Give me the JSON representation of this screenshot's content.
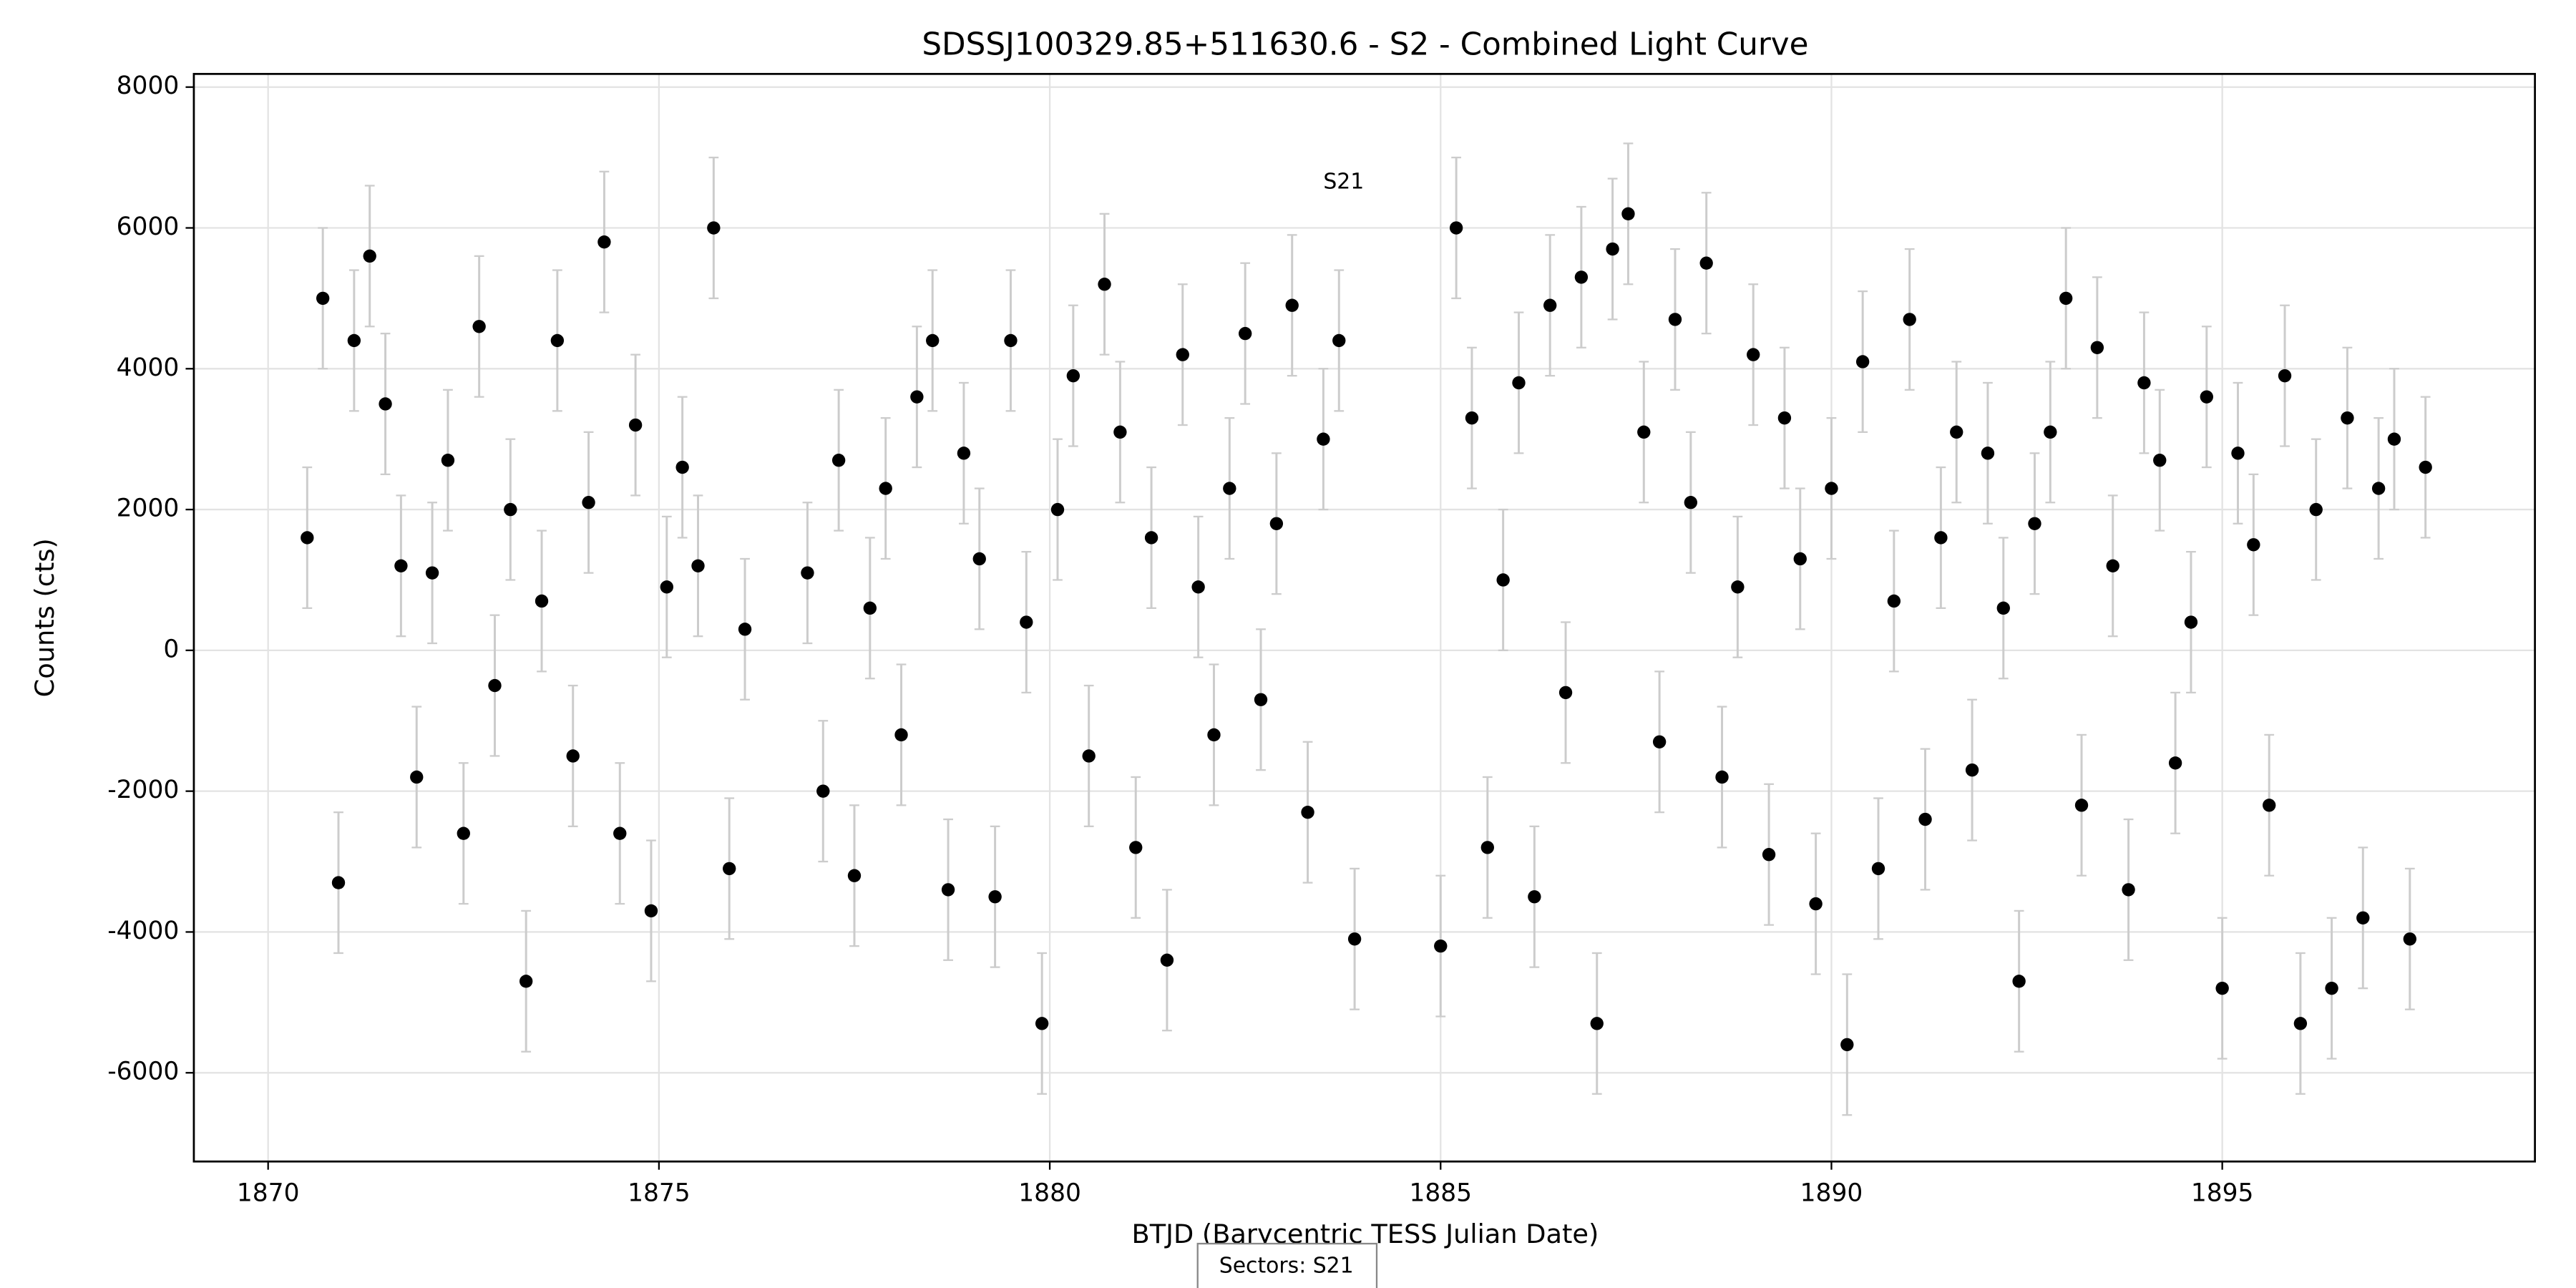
{
  "chart_data": {
    "type": "scatter",
    "title": "SDSSJ100329.85+511630.6 - S2 - Combined Light Curve",
    "xlabel": "BTJD (Barycentric TESS Julian Date)",
    "ylabel": "Counts (cts)",
    "annotation": {
      "text": "S21",
      "x": 1883.76,
      "y": 6647
    },
    "legend_title": "Sectors: S21",
    "legend_position": "lower center",
    "grid": true,
    "color": "#000000",
    "error_color": "#cccccc",
    "yerr": 1000,
    "xlim": [
      1869.05,
      1899.0
    ],
    "ylim": [
      -7260,
      8187
    ],
    "xticks": [
      1870,
      1875,
      1880,
      1885,
      1890,
      1895
    ],
    "yticks": [
      -6000,
      -4000,
      -2000,
      0,
      2000,
      4000,
      6000,
      8000
    ],
    "x": [
      1870.5,
      1870.7,
      1870.9,
      1871.1,
      1871.3,
      1871.5,
      1871.7,
      1871.9,
      1872.1,
      1872.3,
      1872.5,
      1872.7,
      1872.9,
      1873.1,
      1873.3,
      1873.5,
      1873.7,
      1873.9,
      1874.1,
      1874.3,
      1874.5,
      1874.7,
      1874.9,
      1875.1,
      1875.3,
      1875.5,
      1875.7,
      1875.9,
      1876.1,
      1876.9,
      1877.1,
      1877.3,
      1877.5,
      1877.7,
      1877.9,
      1878.1,
      1878.3,
      1878.5,
      1878.7,
      1878.9,
      1879.1,
      1879.3,
      1879.5,
      1879.7,
      1879.9,
      1880.1,
      1880.3,
      1880.5,
      1880.7,
      1880.9,
      1881.1,
      1881.3,
      1881.5,
      1881.7,
      1881.9,
      1882.1,
      1882.3,
      1882.5,
      1882.7,
      1882.9,
      1883.1,
      1883.3,
      1883.5,
      1883.7,
      1883.9,
      1885.0,
      1885.2,
      1885.4,
      1885.6,
      1885.8,
      1886.0,
      1886.2,
      1886.4,
      1886.6,
      1886.8,
      1887.0,
      1887.2,
      1887.4,
      1887.6,
      1887.8,
      1888.0,
      1888.2,
      1888.4,
      1888.6,
      1888.8,
      1889.0,
      1889.2,
      1889.4,
      1889.6,
      1889.8,
      1890.0,
      1890.2,
      1890.4,
      1890.6,
      1890.8,
      1891.0,
      1891.2,
      1891.4,
      1891.6,
      1891.8,
      1892.0,
      1892.2,
      1892.4,
      1892.6,
      1892.8,
      1893.0,
      1893.2,
      1893.4,
      1893.6,
      1893.8,
      1894.0,
      1894.2,
      1894.4,
      1894.6,
      1894.8,
      1895.0,
      1895.2,
      1895.4,
      1895.6,
      1895.8,
      1896.0,
      1896.2,
      1896.4,
      1896.6,
      1896.8,
      1897.0,
      1897.2,
      1897.4,
      1897.6
    ],
    "values": [
      1600,
      5000,
      -3300,
      4400,
      5600,
      3500,
      1200,
      -1800,
      1100,
      2700,
      -2600,
      4600,
      -500,
      2000,
      -4700,
      700,
      4400,
      -1500,
      2100,
      5800,
      -2600,
      3200,
      -3700,
      900,
      2600,
      1200,
      6000,
      -3100,
      300,
      1100,
      -2000,
      2700,
      -3200,
      600,
      2300,
      -1200,
      3600,
      4400,
      -3400,
      2800,
      1300,
      -3500,
      4400,
      400,
      -5300,
      2000,
      3900,
      -1500,
      5200,
      3100,
      -2800,
      1600,
      -4400,
      4200,
      900,
      -1200,
      2300,
      4500,
      -700,
      1800,
      4900,
      -2300,
      3000,
      4400,
      -4100,
      -4200,
      6000,
      3300,
      -2800,
      1000,
      3800,
      -3500,
      4900,
      -600,
      5300,
      -5300,
      5700,
      6200,
      3100,
      -1300,
      4700,
      2100,
      5500,
      -1800,
      900,
      4200,
      -2900,
      3300,
      1300,
      -3600,
      2300,
      -5600,
      4100,
      -3100,
      700,
      4700,
      -2400,
      1600,
      3100,
      -1700,
      2800,
      600,
      -4700,
      1800,
      3100,
      5000,
      -2200,
      4300,
      1200,
      -3400,
      3800,
      2700,
      -1600,
      400,
      3600,
      -4800,
      2800,
      1500,
      -2200,
      3900,
      -5300,
      2000,
      -4800,
      3300,
      -3800,
      2300,
      3000,
      -4100,
      2600
    ]
  }
}
